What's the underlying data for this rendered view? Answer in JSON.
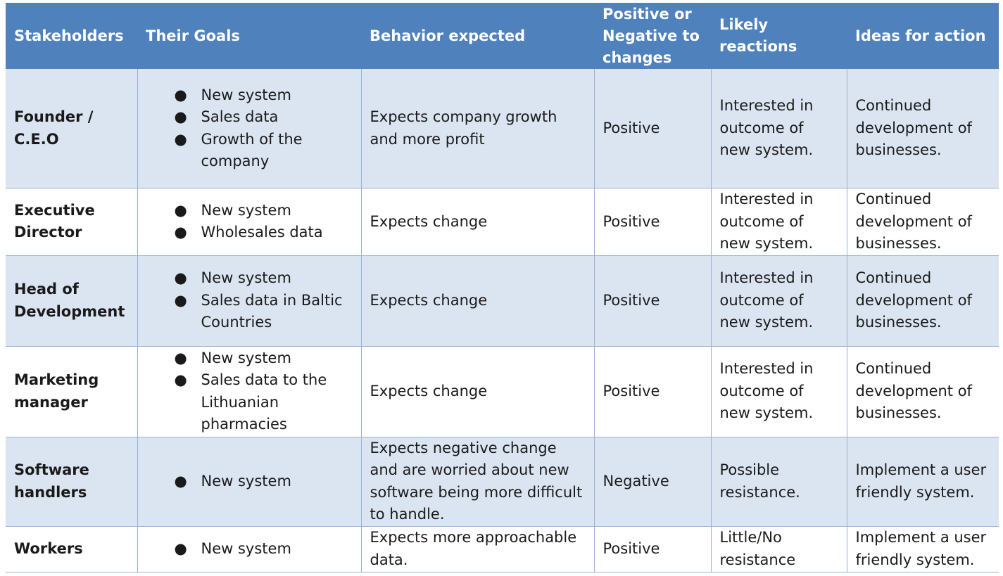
{
  "headers": {
    "stakeholders": "Stakeholders",
    "goals": "Their Goals",
    "behavior": "Behavior expected",
    "positive": "Positive or Negative to changes",
    "reactions": "Likely reactions",
    "ideas": "Ideas for action"
  },
  "rows": [
    {
      "stakeholder": "Founder / C.E.O",
      "goals": [
        "New system",
        "Sales data",
        "Growth of the company"
      ],
      "behavior": "Expects company growth and more profit",
      "attitude": "Positive",
      "reaction": "Interested in outcome of new system.",
      "action": "Continued development of businesses."
    },
    {
      "stakeholder": "Executive Director",
      "goals": [
        "New system",
        "Wholesales data"
      ],
      "behavior": "Expects change",
      "attitude": "Positive",
      "reaction": "Interested in outcome of new system.",
      "action": "Continued development of businesses."
    },
    {
      "stakeholder": "Head of Development",
      "goals": [
        "New system",
        "Sales data in Baltic Countries"
      ],
      "behavior": "Expects change",
      "attitude": "Positive",
      "reaction": "Interested in outcome of new system.",
      "action": "Continued development of businesses."
    },
    {
      "stakeholder": "Marketing manager",
      "goals": [
        "New system",
        "Sales data to the Lithuanian pharmacies"
      ],
      "behavior": "Expects change",
      "attitude": "Positive",
      "reaction": "Interested in outcome of new system.",
      "action": "Continued development of businesses."
    },
    {
      "stakeholder": "Software handlers",
      "goals": [
        "New system"
      ],
      "behavior": "Expects negative change and are worried about new software being more difficult to handle.",
      "attitude": "Negative",
      "reaction": "Possible resistance.",
      "action": "Implement a user friendly system."
    },
    {
      "stakeholder": "Workers",
      "goals": [
        "New system"
      ],
      "behavior": "Expects more approachable data.",
      "attitude": "Positive",
      "reaction": "Little/No resistance",
      "action": "Implement a user friendly system."
    }
  ],
  "bullet_glyph": "●"
}
